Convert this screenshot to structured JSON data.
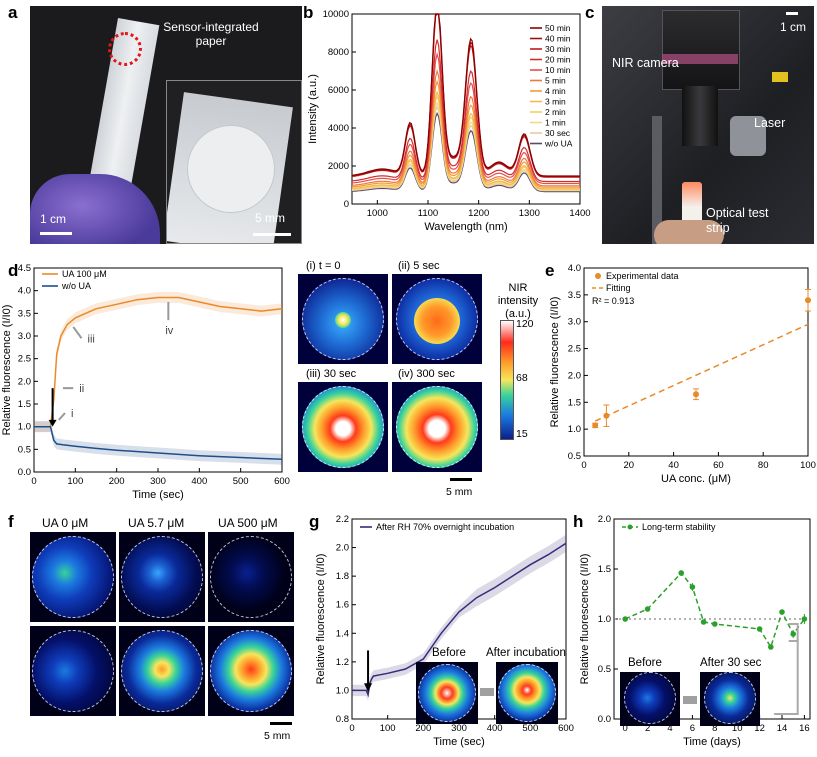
{
  "panel_labels": {
    "a": "a",
    "b": "b",
    "c": "c",
    "d": "d",
    "e": "e",
    "f": "f",
    "g": "g",
    "h": "h"
  },
  "panel_a": {
    "label": "Sensor-integrated paper",
    "scale_main": "1 cm",
    "scale_inset": "5 mm"
  },
  "panel_c": {
    "camera_label": "NIR camera",
    "laser_label": "Laser",
    "strip_label": "Optical test strip",
    "scale": "1 cm"
  },
  "panel_d_images": {
    "titles": [
      "(i) t = 0",
      "(ii) 5 sec",
      "(iii) 30 sec",
      "(iv) 300 sec"
    ],
    "colorbar_title": "NIR intensity (a.u.)",
    "colorbar_ticks": [
      "120",
      "68",
      "15"
    ],
    "scale": "5 mm"
  },
  "panel_f": {
    "titles": [
      "UA 0 μM",
      "UA 5.7 μM",
      "UA 500 μM"
    ],
    "scale": "5 mm"
  },
  "panel_g_insets": {
    "before": "Before",
    "after": "After incubation"
  },
  "panel_h_insets": {
    "before": "Before",
    "after": "After 30 sec"
  },
  "colors": {
    "orange": "#e98a2a",
    "navy": "#1f4e8c",
    "purple": "#3b2a7a",
    "green": "#2ca02c",
    "red_circle": "#e01818"
  },
  "chart_data": [
    {
      "id": "b",
      "type": "line",
      "title": "",
      "xlabel": "Wavelength (nm)",
      "ylabel": "Intensity (a.u.)",
      "xlim": [
        950,
        1400
      ],
      "ylim": [
        0,
        10000
      ],
      "xticks": [
        1000,
        1100,
        1200,
        1300,
        1400
      ],
      "yticks": [
        0,
        2000,
        4000,
        6000,
        8000,
        10000
      ],
      "series": [
        {
          "name": "50 min",
          "color": "#8b0000",
          "peak": 9700
        },
        {
          "name": "40 min",
          "color": "#a30d0d",
          "peak": 9500
        },
        {
          "name": "30 min",
          "color": "#c01a1a",
          "peak": 9300
        },
        {
          "name": "20 min",
          "color": "#d42d2d",
          "peak": 7800
        },
        {
          "name": "10 min",
          "color": "#e25050",
          "peak": 7100
        },
        {
          "name": "5 min",
          "color": "#ef7a3a",
          "peak": 6300
        },
        {
          "name": "4 min",
          "color": "#f39a3a",
          "peak": 5800
        },
        {
          "name": "3 min",
          "color": "#f6b84a",
          "peak": 5300
        },
        {
          "name": "2 min",
          "color": "#f3cf66",
          "peak": 5100
        },
        {
          "name": "1 min",
          "color": "#efd98a",
          "peak": 4800
        },
        {
          "name": "30 sec",
          "color": "#e8c9a4",
          "peak": 4600
        },
        {
          "name": "w/o UA",
          "color": "#5a4a6a",
          "peak": 4300
        }
      ]
    },
    {
      "id": "d",
      "type": "line",
      "xlabel": "Time (sec)",
      "ylabel": "Relative fluorescence (I/I0)",
      "xlim": [
        0,
        600
      ],
      "ylim": [
        0,
        4.5
      ],
      "xticks": [
        0,
        100,
        200,
        300,
        400,
        500,
        600
      ],
      "yticks": [
        0,
        0.5,
        1.0,
        1.5,
        2.0,
        2.5,
        3.0,
        3.5,
        4.0,
        4.5
      ],
      "legend": [
        "UA 100 μM",
        "w/o UA"
      ],
      "annotations": [
        "i",
        "ii",
        "iii",
        "iv"
      ],
      "series": [
        {
          "name": "UA 100 μM",
          "color": "#e98a2a",
          "x": [
            0,
            40,
            48,
            55,
            65,
            80,
            100,
            150,
            200,
            250,
            300,
            350,
            400,
            450,
            500,
            550,
            600
          ],
          "y": [
            1.0,
            1.0,
            1.6,
            2.6,
            3.0,
            3.25,
            3.4,
            3.6,
            3.7,
            3.8,
            3.85,
            3.85,
            3.75,
            3.65,
            3.6,
            3.55,
            3.6
          ]
        },
        {
          "name": "w/o UA",
          "color": "#1f4e8c",
          "x": [
            0,
            40,
            48,
            55,
            70,
            100,
            150,
            200,
            300,
            400,
            500,
            600
          ],
          "y": [
            1.0,
            1.0,
            0.7,
            0.62,
            0.6,
            0.57,
            0.52,
            0.48,
            0.42,
            0.36,
            0.32,
            0.28
          ]
        }
      ]
    },
    {
      "id": "e",
      "type": "scatter",
      "xlabel": "UA conc. (μM)",
      "ylabel": "Relative fluorescence (I/I0)",
      "xlim": [
        0,
        100
      ],
      "ylim": [
        0.5,
        4.0
      ],
      "xticks": [
        0,
        20,
        40,
        60,
        80,
        100
      ],
      "yticks": [
        0.5,
        1.0,
        1.5,
        2.0,
        2.5,
        3.0,
        3.5,
        4.0
      ],
      "legend": [
        "Experimental data",
        "Fitting"
      ],
      "r2_label": "R² = 0.913",
      "x": [
        5,
        10,
        50,
        100
      ],
      "y": [
        1.07,
        1.25,
        1.65,
        3.4
      ],
      "err": [
        0.04,
        0.2,
        0.1,
        0.2
      ],
      "fit": {
        "x": [
          5,
          100
        ],
        "y": [
          1.15,
          2.95
        ]
      }
    },
    {
      "id": "g",
      "type": "line",
      "xlabel": "Time (sec)",
      "ylabel": "Relative fluorescence (I/I0)",
      "xlim": [
        0,
        600
      ],
      "ylim": [
        0.8,
        2.2
      ],
      "xticks": [
        0,
        100,
        200,
        300,
        400,
        500,
        600
      ],
      "yticks": [
        0.8,
        1.0,
        1.2,
        1.4,
        1.6,
        1.8,
        2.0,
        2.2
      ],
      "legend": [
        "After RH 70% overnight incubation"
      ],
      "series": [
        {
          "name": "After RH 70% overnight incubation",
          "color": "#3b2a7a",
          "x": [
            0,
            40,
            45,
            50,
            55,
            60,
            80,
            100,
            150,
            200,
            250,
            300,
            350,
            400,
            450,
            500,
            550,
            600
          ],
          "y": [
            1.0,
            1.0,
            0.97,
            1.05,
            1.08,
            1.1,
            1.11,
            1.12,
            1.15,
            1.22,
            1.4,
            1.55,
            1.65,
            1.72,
            1.8,
            1.88,
            1.95,
            2.03
          ]
        }
      ]
    },
    {
      "id": "h",
      "type": "line",
      "xlabel": "Time (days)",
      "ylabel": "Relative fluorescence (I/I0)",
      "xlim": [
        -1,
        16.5
      ],
      "ylim": [
        0,
        2.0
      ],
      "xticks": [
        0,
        2,
        4,
        6,
        8,
        10,
        12,
        14,
        16
      ],
      "yticks": [
        0,
        0.5,
        1.0,
        1.5,
        2.0
      ],
      "legend": [
        "Long-term stability"
      ],
      "x": [
        0,
        2,
        5,
        6,
        7,
        8,
        12,
        13,
        14,
        15,
        16
      ],
      "y": [
        1.0,
        1.1,
        1.46,
        1.32,
        0.97,
        0.95,
        0.9,
        0.72,
        1.07,
        0.85,
        1.0
      ],
      "err": [
        0.01,
        0.02,
        0.03,
        0.04,
        0.02,
        0.01,
        0.02,
        0.02,
        0.02,
        0.04,
        0.05
      ]
    }
  ]
}
